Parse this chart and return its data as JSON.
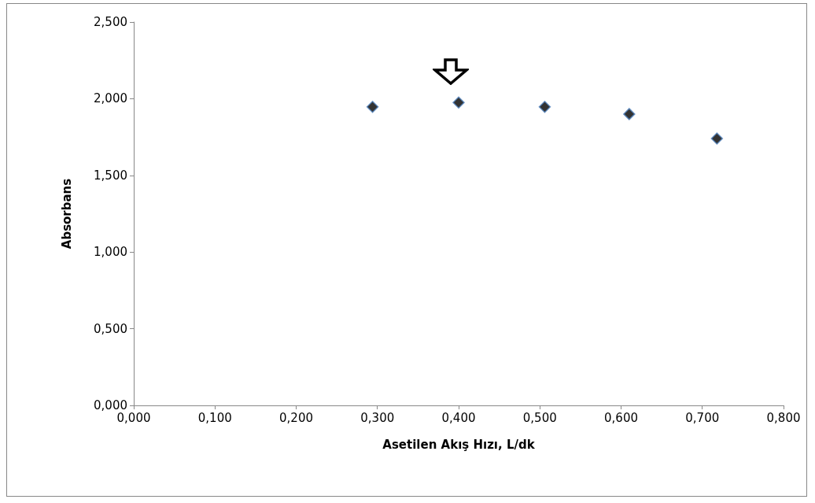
{
  "chart_data": {
    "type": "scatter",
    "xlabel": "Asetilen Akış Hızı, L/dk",
    "ylabel": "Absorbans",
    "x": [
      0.294,
      0.4,
      0.506,
      0.61,
      0.718
    ],
    "values": [
      1.947,
      1.975,
      1.947,
      1.9,
      1.74
    ],
    "color": "#000000",
    "marker": "diamond",
    "grid": false,
    "xlim": [
      0,
      0.8
    ],
    "xticks": [
      {
        "value": 0,
        "label": "0,000"
      },
      {
        "value": 0.1,
        "label": "0,100"
      },
      {
        "value": 0.2,
        "label": "0,200"
      },
      {
        "value": 0.3,
        "label": "0,300"
      },
      {
        "value": 0.4,
        "label": "0,400"
      },
      {
        "value": 0.5,
        "label": "0,500"
      },
      {
        "value": 0.6,
        "label": "0,600"
      },
      {
        "value": 0.7,
        "label": "0,700"
      },
      {
        "value": 0.8,
        "label": "0,800"
      }
    ],
    "ylim": [
      0,
      2.5
    ],
    "yticks": [
      {
        "value": 0,
        "label": "0,000"
      },
      {
        "value": 0.5,
        "label": "0,500"
      },
      {
        "value": 1,
        "label": "1,000"
      },
      {
        "value": 1.5,
        "label": "1,500"
      },
      {
        "value": 2,
        "label": "2,000"
      },
      {
        "value": 2.5,
        "label": "2,500"
      }
    ]
  }
}
